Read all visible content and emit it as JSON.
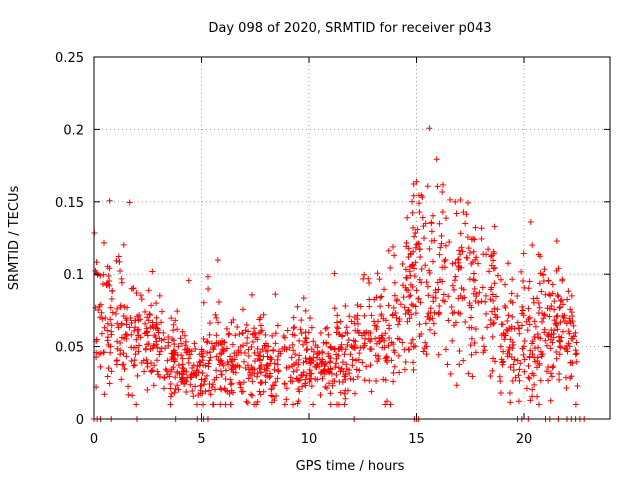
{
  "chart_data": {
    "type": "scatter",
    "title": "Day 098 of 2020, SRMTID for receiver p043",
    "xlabel": "GPS time / hours",
    "ylabel": "SRMTID / TECUs",
    "xlim": [
      0,
      24
    ],
    "ylim": [
      0,
      0.25
    ],
    "xticks": [
      0,
      5,
      10,
      15,
      20
    ],
    "yticks": [
      0,
      0.05,
      0.1,
      0.15,
      0.2,
      0.25
    ],
    "xtick_labels": [
      "0",
      "5",
      "10",
      "15",
      "20"
    ],
    "ytick_labels": [
      "0",
      "0.05",
      "0.1",
      "0.15",
      "0.2",
      "0.25"
    ],
    "grid": true,
    "marker": "+",
    "color": "#ff0000",
    "profile": {
      "x": [
        0,
        0.3,
        1,
        1.5,
        2.5,
        3,
        3.5,
        4,
        4.5,
        5,
        5.5,
        6,
        7,
        8,
        9,
        10,
        11,
        12,
        12.5,
        13,
        13.5,
        14,
        14.5,
        15,
        15.5,
        16,
        16.5,
        17,
        17.5,
        18,
        18.5,
        19,
        19.5,
        20,
        20.5,
        21,
        21.5,
        22,
        22.5
      ],
      "y": [
        0.09,
        0.07,
        0.055,
        0.06,
        0.055,
        0.05,
        0.045,
        0.04,
        0.035,
        0.035,
        0.037,
        0.04,
        0.04,
        0.038,
        0.038,
        0.04,
        0.04,
        0.045,
        0.05,
        0.055,
        0.06,
        0.065,
        0.075,
        0.1,
        0.095,
        0.1,
        0.09,
        0.085,
        0.09,
        0.09,
        0.075,
        0.065,
        0.05,
        0.055,
        0.06,
        0.065,
        0.06,
        0.055,
        0.05
      ],
      "spread": 0.018
    },
    "zero_points_x": [
      0,
      0.15,
      0.3,
      0.8,
      2,
      3.8,
      4.8,
      5,
      5.1,
      5.3,
      12.1,
      14.9,
      15,
      15.1,
      19.7,
      19.9,
      20.2,
      21,
      21.2,
      21.6,
      22,
      22.2,
      22.4,
      22.6,
      22.8
    ]
  }
}
